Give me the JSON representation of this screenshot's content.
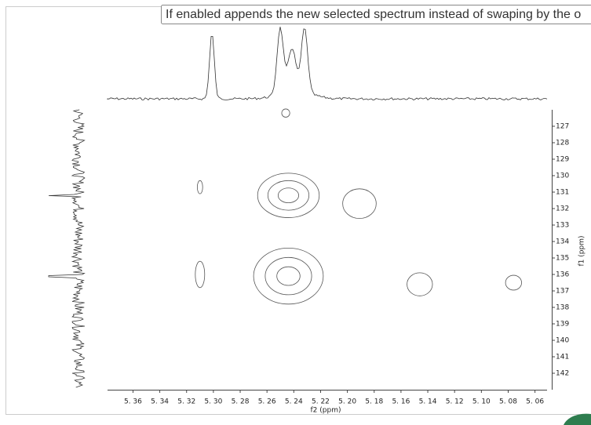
{
  "tooltip": "If enabled appends the new selected spectrum instead of swaping by the o",
  "chart_data": {
    "type": "contour",
    "x_label": "f2 (ppm)",
    "y_label": "f1 (ppm)",
    "xlim": [
      5.379,
      5.051
    ],
    "ylim": [
      126,
      143
    ],
    "xticks": [
      {
        "value": 5.36,
        "label": "5. 36"
      },
      {
        "value": 5.34,
        "label": "5. 34"
      },
      {
        "value": 5.32,
        "label": "5. 32"
      },
      {
        "value": 5.3,
        "label": "5. 30"
      },
      {
        "value": 5.28,
        "label": "5. 28"
      },
      {
        "value": 5.26,
        "label": "5. 26"
      },
      {
        "value": 5.24,
        "label": "5. 24"
      },
      {
        "value": 5.22,
        "label": "5. 22"
      },
      {
        "value": 5.2,
        "label": "5. 20"
      },
      {
        "value": 5.18,
        "label": "5. 18"
      },
      {
        "value": 5.16,
        "label": "5. 16"
      },
      {
        "value": 5.14,
        "label": "5. 14"
      },
      {
        "value": 5.12,
        "label": "5. 12"
      },
      {
        "value": 5.1,
        "label": "5. 10"
      },
      {
        "value": 5.08,
        "label": "5. 08"
      },
      {
        "value": 5.06,
        "label": "5. 06"
      }
    ],
    "yticks": [
      127,
      128,
      129,
      130,
      131,
      132,
      133,
      134,
      135,
      136,
      137,
      138,
      139,
      140,
      141,
      142
    ],
    "color": "#555555",
    "peaks": [
      {
        "x": 5.31,
        "y": 130.7,
        "width": 0.004,
        "height": 0.8,
        "levels": 1
      },
      {
        "x": 5.244,
        "y": 131.2,
        "width": 0.046,
        "height": 2.7,
        "levels": 3
      },
      {
        "x": 5.191,
        "y": 131.7,
        "width": 0.025,
        "height": 1.8,
        "levels": 1
      },
      {
        "x": 5.31,
        "y": 136.0,
        "width": 0.007,
        "height": 1.6,
        "levels": 1
      },
      {
        "x": 5.244,
        "y": 136.1,
        "width": 0.052,
        "height": 3.4,
        "levels": 3
      },
      {
        "x": 5.146,
        "y": 136.6,
        "width": 0.019,
        "height": 1.4,
        "levels": 1
      },
      {
        "x": 5.076,
        "y": 136.5,
        "width": 0.012,
        "height": 0.9,
        "levels": 1
      },
      {
        "x": 5.246,
        "y": 126.2,
        "width": 0.006,
        "height": 0.5,
        "levels": 1
      }
    ]
  }
}
